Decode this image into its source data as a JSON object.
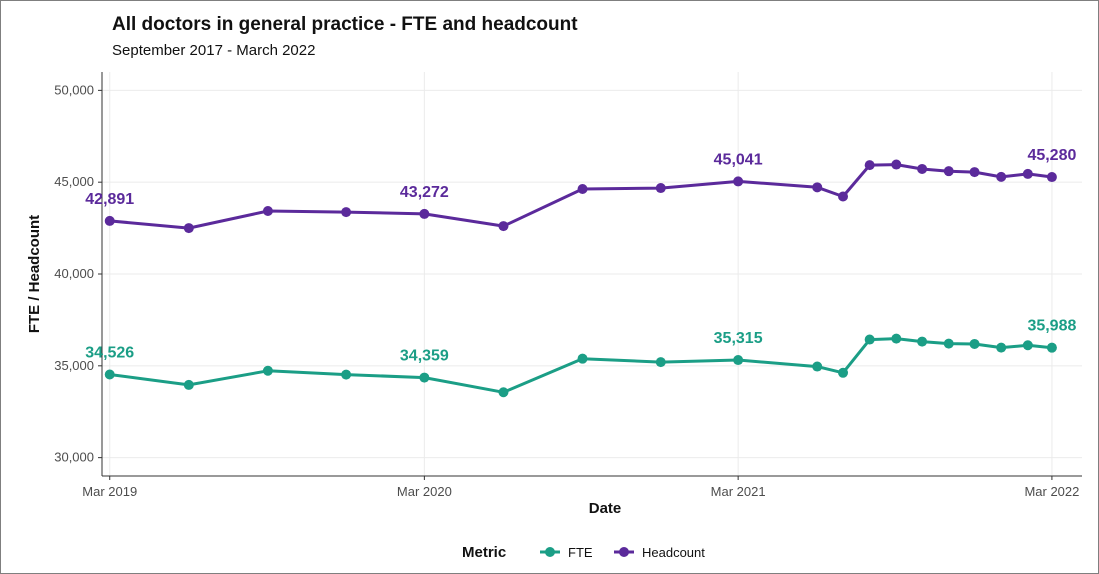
{
  "chart_data": {
    "type": "line",
    "title": "All doctors in general practice - FTE and headcount",
    "subtitle": "September 2017 - March 2022",
    "xlabel": "Date",
    "ylabel": "FTE / Headcount",
    "ylim": [
      29000,
      51000
    ],
    "y_ticks": [
      30000,
      35000,
      40000,
      45000,
      50000
    ],
    "y_tick_labels": [
      "30,000",
      "35,000",
      "40,000",
      "45,000",
      "50,000"
    ],
    "x_range": [
      "2019-02-20",
      "2022-04-05"
    ],
    "x_ticks": [
      "2019-03-01",
      "2020-03-01",
      "2021-03-01",
      "2022-03-01"
    ],
    "x_tick_labels": [
      "Mar 2019",
      "Mar 2020",
      "Mar 2021",
      "Mar 2022"
    ],
    "grid": true,
    "legend": {
      "title": "Metric",
      "position": "bottom"
    },
    "series": [
      {
        "name": "FTE",
        "color": "#1b9e86",
        "points": [
          {
            "x": "2019-03-01",
            "y": 34526
          },
          {
            "x": "2019-06-01",
            "y": 33960
          },
          {
            "x": "2019-09-01",
            "y": 34730
          },
          {
            "x": "2019-12-01",
            "y": 34520
          },
          {
            "x": "2020-03-01",
            "y": 34359
          },
          {
            "x": "2020-06-01",
            "y": 33560
          },
          {
            "x": "2020-09-01",
            "y": 35390
          },
          {
            "x": "2020-12-01",
            "y": 35200
          },
          {
            "x": "2021-03-01",
            "y": 35315
          },
          {
            "x": "2021-06-01",
            "y": 34960
          },
          {
            "x": "2021-07-01",
            "y": 34620
          },
          {
            "x": "2021-08-01",
            "y": 36430
          },
          {
            "x": "2021-09-01",
            "y": 36480
          },
          {
            "x": "2021-10-01",
            "y": 36320
          },
          {
            "x": "2021-11-01",
            "y": 36210
          },
          {
            "x": "2021-12-01",
            "y": 36190
          },
          {
            "x": "2022-01-01",
            "y": 35990
          },
          {
            "x": "2022-02-01",
            "y": 36120
          },
          {
            "x": "2022-03-01",
            "y": 35988
          }
        ],
        "labels": [
          {
            "x": "2019-03-01",
            "text": "34,526"
          },
          {
            "x": "2020-03-01",
            "text": "34,359"
          },
          {
            "x": "2021-03-01",
            "text": "35,315"
          },
          {
            "x": "2022-03-01",
            "text": "35,988"
          }
        ]
      },
      {
        "name": "Headcount",
        "color": "#5b2a9b",
        "points": [
          {
            "x": "2019-03-01",
            "y": 42891
          },
          {
            "x": "2019-06-01",
            "y": 42500
          },
          {
            "x": "2019-09-01",
            "y": 43430
          },
          {
            "x": "2019-12-01",
            "y": 43370
          },
          {
            "x": "2020-03-01",
            "y": 43272
          },
          {
            "x": "2020-06-01",
            "y": 42610
          },
          {
            "x": "2020-09-01",
            "y": 44630
          },
          {
            "x": "2020-12-01",
            "y": 44680
          },
          {
            "x": "2021-03-01",
            "y": 45041
          },
          {
            "x": "2021-06-01",
            "y": 44720
          },
          {
            "x": "2021-07-01",
            "y": 44220
          },
          {
            "x": "2021-08-01",
            "y": 45930
          },
          {
            "x": "2021-09-01",
            "y": 45960
          },
          {
            "x": "2021-10-01",
            "y": 45720
          },
          {
            "x": "2021-11-01",
            "y": 45600
          },
          {
            "x": "2021-12-01",
            "y": 45550
          },
          {
            "x": "2022-01-01",
            "y": 45290
          },
          {
            "x": "2022-02-01",
            "y": 45450
          },
          {
            "x": "2022-03-01",
            "y": 45280
          }
        ],
        "labels": [
          {
            "x": "2019-03-01",
            "text": "42,891"
          },
          {
            "x": "2020-03-01",
            "text": "43,272"
          },
          {
            "x": "2021-03-01",
            "text": "45,041"
          },
          {
            "x": "2022-03-01",
            "text": "45,280"
          }
        ]
      }
    ]
  }
}
